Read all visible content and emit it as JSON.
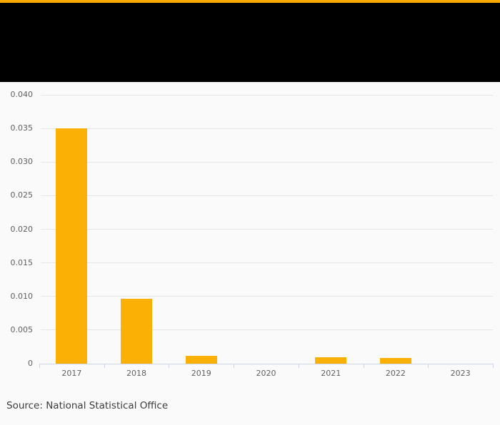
{
  "page": {
    "background_color": "#fafafa",
    "accent_color": "#f5a800",
    "header_color": "#000000"
  },
  "chart_data": {
    "type": "bar",
    "categories": [
      "2017",
      "2018",
      "2019",
      "2020",
      "2021",
      "2022",
      "2023"
    ],
    "values": [
      0.035,
      0.0097,
      0.0012,
      0,
      0.001,
      0.0009,
      0
    ],
    "title": "",
    "xlabel": "",
    "ylabel": "",
    "ylim": [
      0,
      0.04
    ],
    "ytick_interval": 0.005,
    "ytick_labels": [
      "0",
      "0.005",
      "0.010",
      "0.015",
      "0.020",
      "0.025",
      "0.030",
      "0.035",
      "0.040"
    ],
    "grid": true,
    "legend": false,
    "bar_color": "#fab005",
    "source": "Source: National Statistical Office"
  }
}
